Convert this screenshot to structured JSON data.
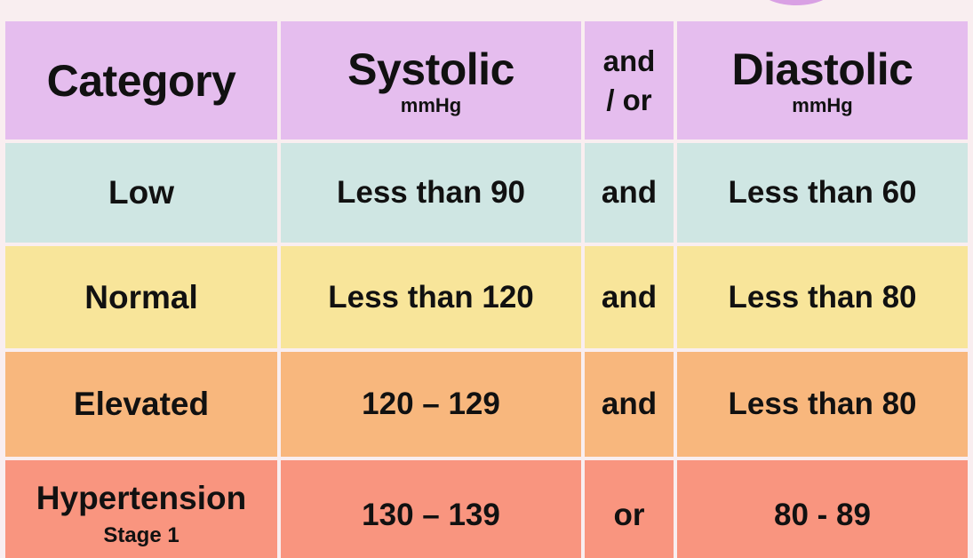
{
  "header": {
    "category": "Category",
    "systolic": "Systolic",
    "systolic_unit": "mmHg",
    "andor_line1": "and",
    "andor_line2": "/ or",
    "diastolic": "Diastolic",
    "diastolic_unit": "mmHg"
  },
  "rows": [
    {
      "category": "Low",
      "systolic": "Less than 90",
      "conjunction": "and",
      "diastolic": "Less than 60"
    },
    {
      "category": "Normal",
      "systolic": "Less than 120",
      "conjunction": "and",
      "diastolic": "Less than 80"
    },
    {
      "category": "Elevated",
      "systolic": "120 – 129",
      "conjunction": "and",
      "diastolic": "Less than 80"
    },
    {
      "category": "Hypertension",
      "category_sub": "Stage 1",
      "systolic": "130 – 139",
      "conjunction": "or",
      "diastolic": "80 - 89"
    }
  ],
  "colors": {
    "background": "#f9eef0",
    "header": "#e5bdee",
    "low": "#cfe6e3",
    "normal": "#f8e59a",
    "elevated": "#f8b77d",
    "hypertension_stage1": "#f9957f",
    "accent_blob": "#d9a0e4"
  }
}
